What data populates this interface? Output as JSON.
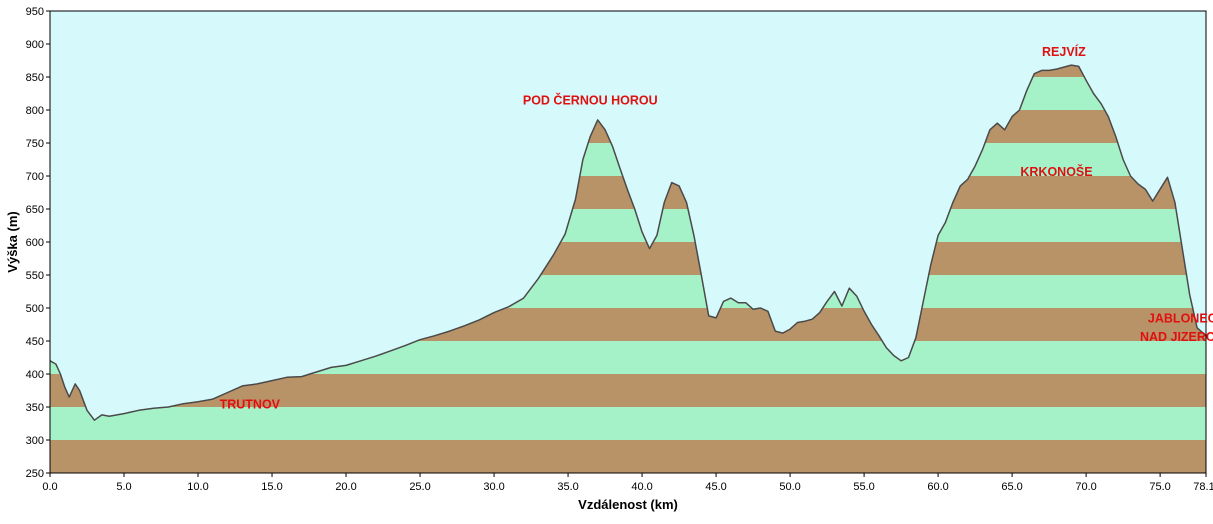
{
  "colors": {
    "sky": "#d6f9fc",
    "band_brown": "#b99368",
    "band_green": "#a5f2c8",
    "outline": "#4a4a4a",
    "label_red": "#e01010"
  },
  "chart_data": {
    "type": "area",
    "xlabel": "Vzdálenost  (km)",
    "ylabel": "Výška (m)",
    "xlim": [
      0,
      78.1
    ],
    "ylim": [
      250,
      950
    ],
    "x_ticks": [
      "0.0",
      "5.0",
      "10.0",
      "15.0",
      "20.0",
      "25.0",
      "30.0",
      "35.0",
      "40.0",
      "45.0",
      "50.0",
      "55.0",
      "60.0",
      "65.0",
      "70.0",
      "75.0",
      "78.1"
    ],
    "y_ticks": [
      "250",
      "300",
      "350",
      "400",
      "450",
      "500",
      "550",
      "600",
      "650",
      "700",
      "750",
      "800",
      "850",
      "900",
      "950"
    ],
    "band_height": 50,
    "grid": false,
    "labels": [
      {
        "text": "POD ČERNOU HOROU",
        "x": 36.5,
        "y": 808
      },
      {
        "text": "REJVÍZ",
        "x": 68.5,
        "y": 882
      },
      {
        "text": "KRKONOŠE",
        "x": 68.0,
        "y": 700
      },
      {
        "text": "JABLONEC",
        "x": 76.5,
        "y": 478
      },
      {
        "text": "NAD JIZEROU",
        "x": 76.5,
        "y": 450
      },
      {
        "text": "TRUTNOV",
        "x": 13.5,
        "y": 348
      }
    ],
    "x": [
      0.0,
      0.4,
      0.7,
      1.0,
      1.3,
      1.7,
      2.0,
      2.5,
      3.0,
      3.5,
      4.0,
      5.0,
      6.0,
      7.0,
      8.0,
      9.0,
      10.0,
      11.0,
      12.0,
      13.0,
      14.0,
      15.0,
      16.0,
      17.0,
      18.0,
      19.0,
      20.0,
      21.0,
      22.0,
      23.0,
      24.0,
      25.0,
      26.0,
      27.0,
      28.0,
      29.0,
      30.0,
      31.0,
      32.0,
      33.0,
      34.0,
      34.8,
      35.5,
      36.0,
      36.5,
      37.0,
      37.5,
      38.0,
      38.5,
      39.0,
      39.5,
      40.0,
      40.5,
      41.0,
      41.5,
      42.0,
      42.5,
      43.0,
      43.5,
      44.0,
      44.5,
      45.0,
      45.5,
      46.0,
      46.5,
      47.0,
      47.5,
      48.0,
      48.5,
      49.0,
      49.5,
      50.0,
      50.5,
      51.0,
      51.5,
      52.0,
      52.5,
      53.0,
      53.5,
      54.0,
      54.5,
      55.0,
      55.5,
      56.0,
      56.5,
      57.0,
      57.5,
      58.0,
      58.5,
      59.0,
      59.5,
      60.0,
      60.5,
      61.0,
      61.5,
      62.0,
      62.5,
      63.0,
      63.5,
      64.0,
      64.5,
      65.0,
      65.5,
      66.0,
      66.5,
      67.0,
      67.5,
      68.0,
      68.5,
      69.0,
      69.5,
      70.0,
      70.5,
      71.0,
      71.5,
      72.0,
      72.5,
      73.0,
      73.5,
      74.0,
      74.5,
      75.0,
      75.5,
      76.0,
      76.5,
      77.0,
      77.5,
      78.1
    ],
    "y": [
      420,
      415,
      400,
      380,
      365,
      385,
      375,
      345,
      330,
      338,
      336,
      340,
      345,
      348,
      350,
      355,
      358,
      362,
      372,
      382,
      385,
      390,
      395,
      396,
      403,
      410,
      413,
      420,
      427,
      435,
      443,
      452,
      458,
      465,
      473,
      482,
      493,
      502,
      515,
      545,
      580,
      612,
      665,
      725,
      760,
      785,
      770,
      745,
      712,
      680,
      650,
      615,
      590,
      610,
      660,
      690,
      685,
      660,
      610,
      550,
      488,
      485,
      510,
      515,
      508,
      508,
      498,
      500,
      495,
      465,
      462,
      468,
      478,
      480,
      483,
      493,
      510,
      525,
      503,
      530,
      518,
      495,
      475,
      458,
      440,
      428,
      420,
      425,
      455,
      510,
      565,
      610,
      630,
      660,
      685,
      695,
      715,
      740,
      770,
      780,
      770,
      790,
      800,
      830,
      855,
      860,
      860,
      862,
      865,
      868,
      866,
      845,
      825,
      810,
      790,
      760,
      725,
      700,
      688,
      680,
      662,
      680,
      698,
      660,
      590,
      520,
      470,
      458
    ]
  }
}
